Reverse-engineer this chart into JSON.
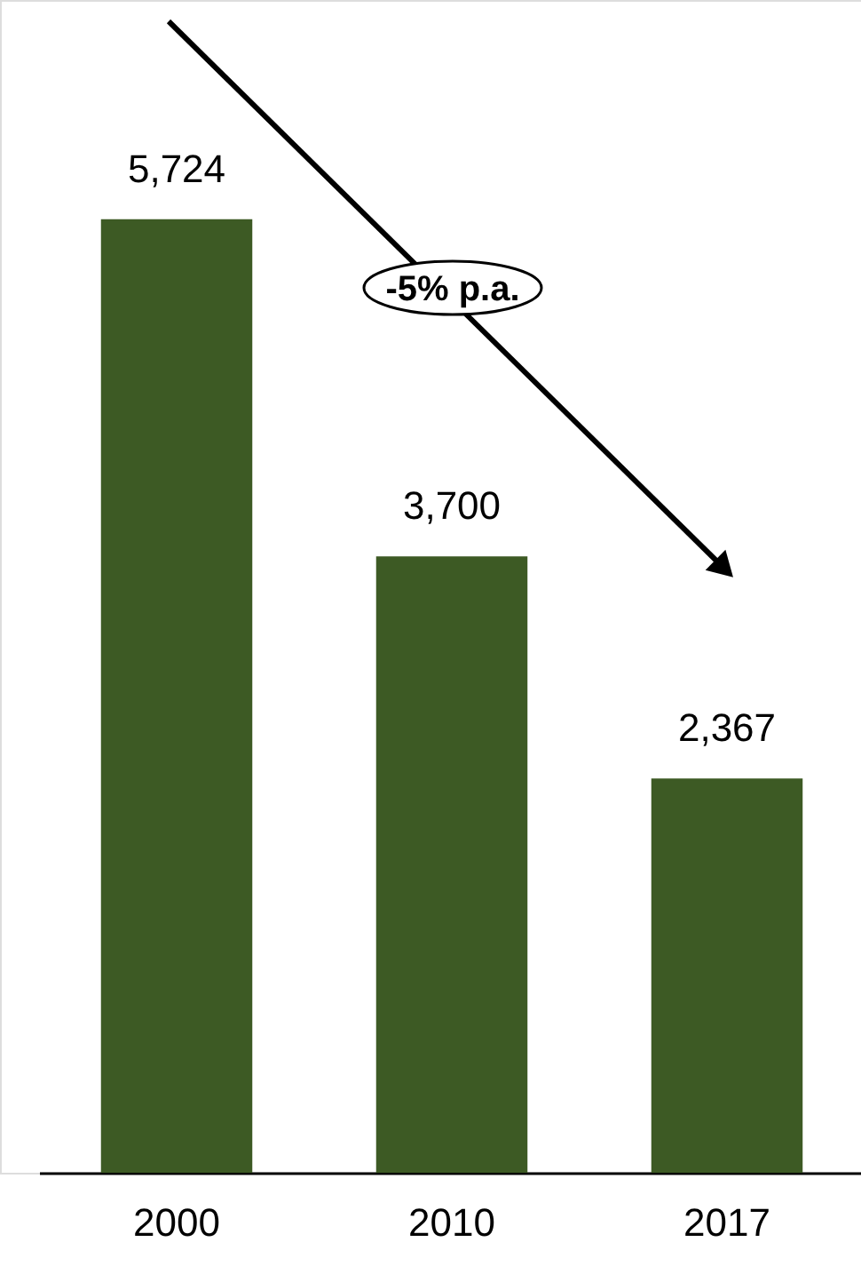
{
  "chart_data": {
    "type": "bar",
    "categories": [
      "2000",
      "2010",
      "2017"
    ],
    "values": [
      5724,
      3700,
      2367
    ],
    "color": "#3d5a24",
    "value_labels": [
      "5,724",
      "3,700",
      "2,367"
    ],
    "annotations": [
      "-5% p.a."
    ]
  }
}
